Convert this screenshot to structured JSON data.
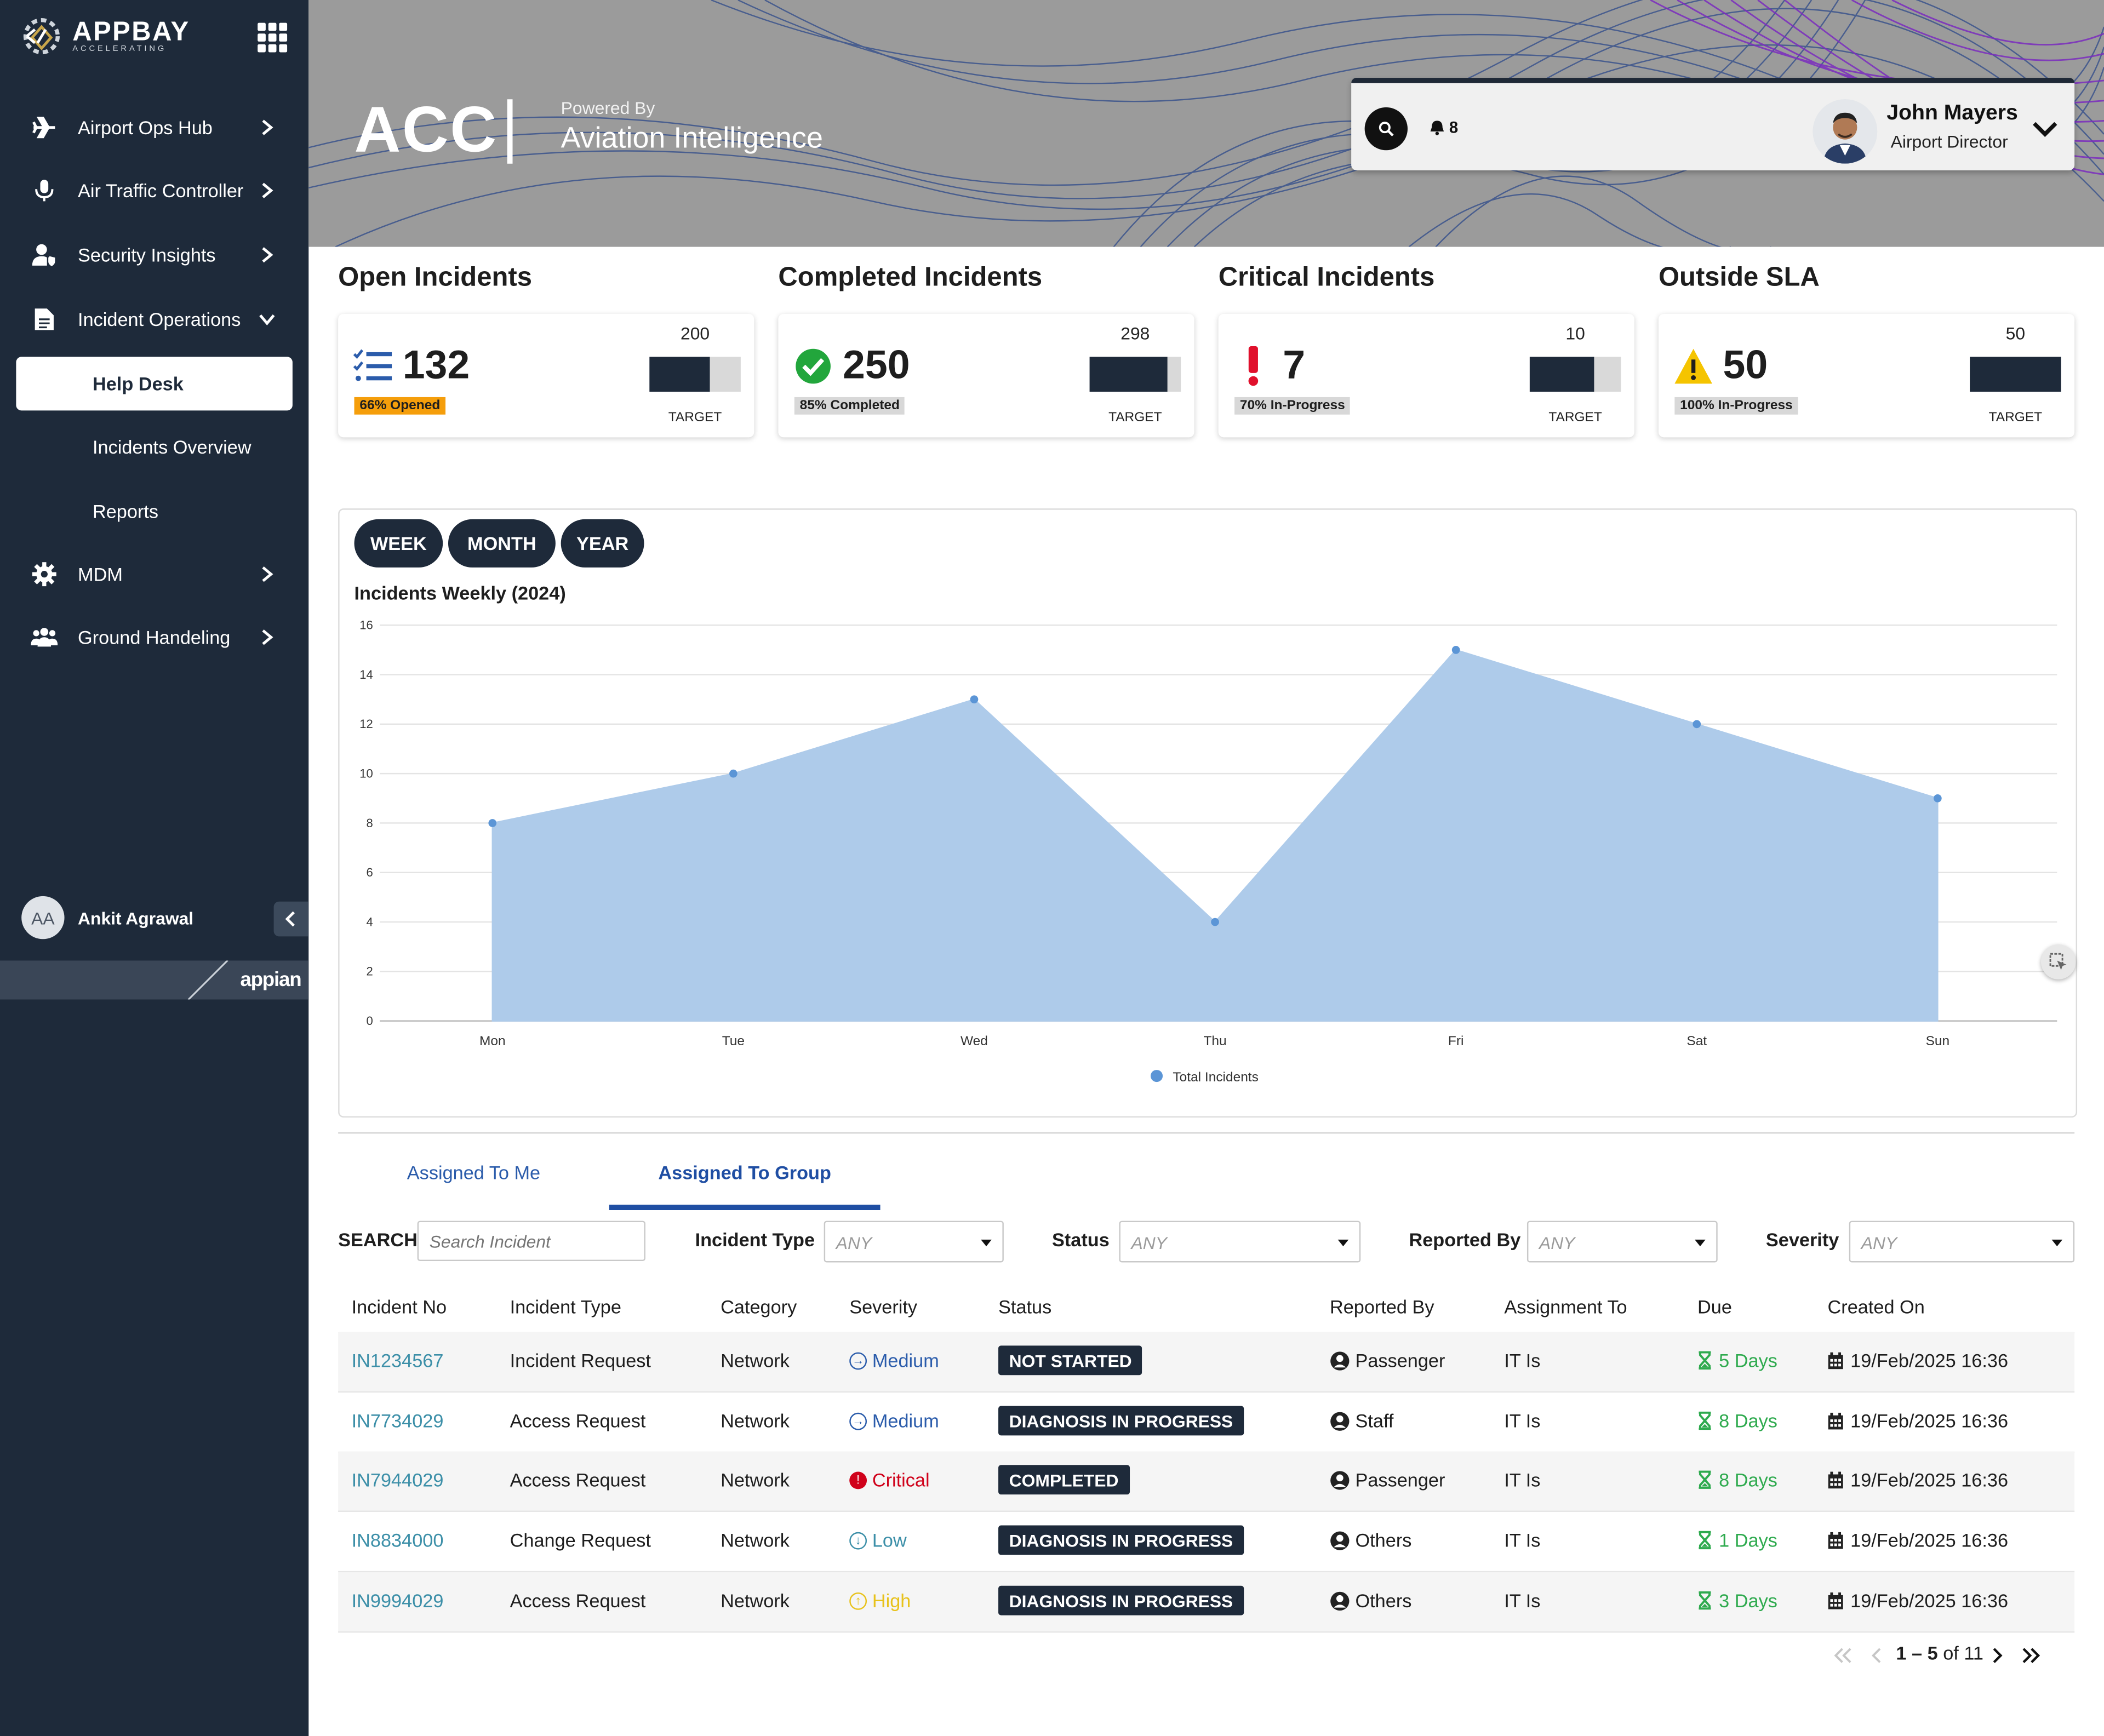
{
  "sidebar": {
    "logo": {
      "name": "APPBAY",
      "tagline": "ACCELERATING"
    },
    "items": [
      {
        "label": "Airport Ops Hub",
        "icon": "airplane-icon"
      },
      {
        "label": "Air Traffic Controller",
        "icon": "microphone-icon"
      },
      {
        "label": "Security Insights",
        "icon": "user-shield-icon"
      },
      {
        "label": "Incident Operations",
        "icon": "document-icon"
      },
      {
        "label": "MDM",
        "icon": "gear-icon"
      },
      {
        "label": "Ground Handeling",
        "icon": "users-icon"
      }
    ],
    "sub_items": [
      {
        "label": "Help Desk",
        "active": true
      },
      {
        "label": "Incidents Overview",
        "active": false
      },
      {
        "label": "Reports",
        "active": false
      }
    ],
    "user": {
      "initials": "AA",
      "name": "Ankit Agrawal"
    },
    "footer_logo": "appian"
  },
  "header": {
    "title": "ACC",
    "powered_by": "Powered By",
    "brand": "Aviation Intelligence",
    "notifications": "8",
    "profile": {
      "name": "John Mayers",
      "role": "Airport Director"
    }
  },
  "kpis": [
    {
      "title": "Open Incidents",
      "value": "132",
      "badge": "66% Opened",
      "target": "200",
      "target_label": "TARGET",
      "fill_fraction": 0.66,
      "icon": "checklist-icon",
      "accent": "#f59e0b"
    },
    {
      "title": "Completed Incidents",
      "value": "250",
      "badge": "85% Completed",
      "target": "298",
      "target_label": "TARGET",
      "fill_fraction": 0.85,
      "icon": "check-circle-icon",
      "accent": "#22a63c"
    },
    {
      "title": "Critical Incidents",
      "value": "7",
      "badge": "70% In-Progress",
      "target": "10",
      "target_label": "TARGET",
      "fill_fraction": 0.7,
      "icon": "exclamation-icon",
      "accent": "#e0102c"
    },
    {
      "title": "Outside SLA",
      "value": "50",
      "badge": "100% In-Progress",
      "target": "50",
      "target_label": "TARGET",
      "fill_fraction": 1.0,
      "icon": "warning-icon",
      "accent": "#f5c400"
    }
  ],
  "chart_controls": {
    "week": "WEEK",
    "month": "MONTH",
    "year": "YEAR"
  },
  "chart_data": {
    "type": "area",
    "title": "Incidents Weekly (2024)",
    "categories": [
      "Mon",
      "Tue",
      "Wed",
      "Thu",
      "Fri",
      "Sat",
      "Sun"
    ],
    "series": [
      {
        "name": "Total Incidents",
        "values": [
          8,
          10,
          13,
          4,
          15,
          12,
          9
        ],
        "color": "#5b95d6",
        "fill": "#aecbea"
      }
    ],
    "ylim": [
      0,
      16
    ],
    "yticks": [
      0,
      2,
      4,
      6,
      8,
      10,
      12,
      14,
      16
    ],
    "grid": true,
    "legend": "bottom"
  },
  "tabs": [
    {
      "label": "Assigned To Me",
      "active": false
    },
    {
      "label": "Assigned To Group",
      "active": true
    }
  ],
  "filters": {
    "search_label": "SEARCH",
    "search_placeholder": "Search Incident",
    "incident_type_label": "Incident Type",
    "status_label": "Status",
    "reported_by_label": "Reported By",
    "severity_label": "Severity",
    "any": "ANY"
  },
  "table": {
    "headers": [
      "Incident No",
      "Incident Type",
      "Category",
      "Severity",
      "Status",
      "Reported By",
      "Assignment To",
      "Due",
      "Created On"
    ],
    "rows": [
      {
        "no": "IN1234567",
        "type": "Incident Request",
        "category": "Network",
        "severity": "Medium",
        "status": "NOT STARTED",
        "reported_by": "Passenger",
        "assigned": "IT Is",
        "due": "5 Days",
        "created": "19/Feb/2025 16:36"
      },
      {
        "no": "IN7734029",
        "type": "Access Request",
        "category": "Network",
        "severity": "Medium",
        "status": "DIAGNOSIS IN PROGRESS",
        "reported_by": "Staff",
        "assigned": "IT Is",
        "due": "8 Days",
        "created": "19/Feb/2025 16:36"
      },
      {
        "no": "IN7944029",
        "type": "Access Request",
        "category": "Network",
        "severity": "Critical",
        "status": "COMPLETED",
        "reported_by": "Passenger",
        "assigned": "IT Is",
        "due": "8 Days",
        "created": "19/Feb/2025 16:36"
      },
      {
        "no": "IN8834000",
        "type": "Change Request",
        "category": "Network",
        "severity": "Low",
        "status": "DIAGNOSIS IN PROGRESS",
        "reported_by": "Others",
        "assigned": "IT Is",
        "due": "1 Days",
        "created": "19/Feb/2025 16:36"
      },
      {
        "no": "IN9994029",
        "type": "Access Request",
        "category": "Network",
        "severity": "High",
        "status": "DIAGNOSIS IN PROGRESS",
        "reported_by": "Others",
        "assigned": "IT Is",
        "due": "3 Days",
        "created": "19/Feb/2025 16:36"
      }
    ],
    "severity_colors": {
      "Medium": "#2b5cab",
      "Critical": "#d0021b",
      "Low": "#3c8fa8",
      "High": "#e8c21a"
    }
  },
  "pagination": {
    "range": "1 – 5",
    "of": "of 11"
  }
}
